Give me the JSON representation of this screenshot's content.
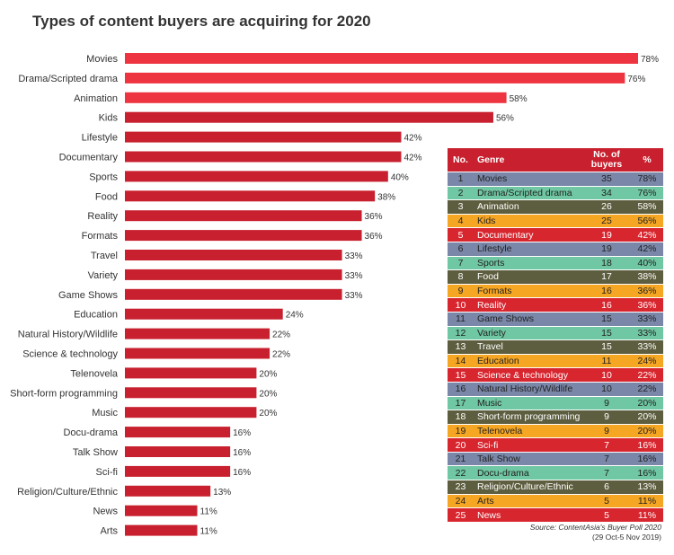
{
  "chart_data": {
    "type": "bar",
    "title": "Types of content buyers are acquiring for 2020",
    "orientation": "horizontal",
    "unit": "%",
    "categories": [
      "Movies",
      "Drama/Scripted drama",
      "Animation",
      "Kids",
      "Lifestyle",
      "Documentary",
      "Sports",
      "Food",
      "Reality",
      "Formats",
      "Travel",
      "Variety",
      "Game Shows",
      "Education",
      "Natural History/Wildlife",
      "Science & technology",
      "Telenovela",
      "Short-form programming",
      "Music",
      "Docu-drama",
      "Talk Show",
      "Sci-fi",
      "Religion/Culture/Ethnic",
      "News",
      "Arts"
    ],
    "values": [
      78,
      76,
      58,
      56,
      42,
      42,
      40,
      38,
      36,
      36,
      33,
      33,
      33,
      24,
      22,
      22,
      20,
      20,
      20,
      16,
      16,
      16,
      13,
      11,
      11
    ],
    "value_labels": [
      "78%",
      "76%",
      "58%",
      "56%",
      "42%",
      "42%",
      "40%",
      "38%",
      "36%",
      "36%",
      "33%",
      "33%",
      "33%",
      "24%",
      "22%",
      "22%",
      "20%",
      "20%",
      "20%",
      "16%",
      "16%",
      "16%",
      "13%",
      "11%",
      "11%"
    ],
    "bar_colors": [
      "#ee3440",
      "#ee3440",
      "#ee3440",
      "#c8202e",
      "#c8202e",
      "#c8202e",
      "#c8202e",
      "#c8202e",
      "#c8202e",
      "#c8202e",
      "#c8202e",
      "#c8202e",
      "#c8202e",
      "#c8202e",
      "#c8202e",
      "#c8202e",
      "#c8202e",
      "#c8202e",
      "#c8202e",
      "#c8202e",
      "#c8202e",
      "#c8202e",
      "#c8202e",
      "#c8202e",
      "#c8202e"
    ],
    "xlim": [
      0,
      80
    ],
    "grid": false
  },
  "table": {
    "headers": {
      "no": "No.",
      "genre": "Genre",
      "buyers_line1": "No. of",
      "buyers_line2": "buyers",
      "pct": "%"
    },
    "header_color": "#c8202e",
    "rows": [
      {
        "no": "1",
        "genre": "Movies",
        "buyers": "35",
        "pct": "78%",
        "color": "#7a87a8"
      },
      {
        "no": "2",
        "genre": "Drama/Scripted drama",
        "buyers": "34",
        "pct": "76%",
        "color": "#6fc7a3"
      },
      {
        "no": "3",
        "genre": "Animation",
        "buyers": "26",
        "pct": "58%",
        "color": "#5d5e3f"
      },
      {
        "no": "4",
        "genre": "Kids",
        "buyers": "25",
        "pct": "56%",
        "color": "#f5a623"
      },
      {
        "no": "5",
        "genre": "Documentary",
        "buyers": "19",
        "pct": "42%",
        "color": "#d8262f"
      },
      {
        "no": "6",
        "genre": "Lifestyle",
        "buyers": "19",
        "pct": "42%",
        "color": "#7a87a8"
      },
      {
        "no": "7",
        "genre": "Sports",
        "buyers": "18",
        "pct": "40%",
        "color": "#6fc7a3"
      },
      {
        "no": "8",
        "genre": "Food",
        "buyers": "17",
        "pct": "38%",
        "color": "#5d5e3f"
      },
      {
        "no": "9",
        "genre": "Formats",
        "buyers": "16",
        "pct": "36%",
        "color": "#f5a623"
      },
      {
        "no": "10",
        "genre": "Reality",
        "buyers": "16",
        "pct": "36%",
        "color": "#d8262f"
      },
      {
        "no": "11",
        "genre": "Game Shows",
        "buyers": "15",
        "pct": "33%",
        "color": "#7a87a8"
      },
      {
        "no": "12",
        "genre": "Variety",
        "buyers": "15",
        "pct": "33%",
        "color": "#6fc7a3"
      },
      {
        "no": "13",
        "genre": "Travel",
        "buyers": "15",
        "pct": "33%",
        "color": "#5d5e3f"
      },
      {
        "no": "14",
        "genre": "Education",
        "buyers": "11",
        "pct": "24%",
        "color": "#f5a623"
      },
      {
        "no": "15",
        "genre": "Science & technology",
        "buyers": "10",
        "pct": "22%",
        "color": "#d8262f"
      },
      {
        "no": "16",
        "genre": "Natural History/Wildlife",
        "buyers": "10",
        "pct": "22%",
        "color": "#7a87a8"
      },
      {
        "no": "17",
        "genre": "Music",
        "buyers": "9",
        "pct": "20%",
        "color": "#6fc7a3"
      },
      {
        "no": "18",
        "genre": "Short-form programming",
        "buyers": "9",
        "pct": "20%",
        "color": "#5d5e3f"
      },
      {
        "no": "19",
        "genre": "Telenovela",
        "buyers": "9",
        "pct": "20%",
        "color": "#f5a623"
      },
      {
        "no": "20",
        "genre": "Sci-fi",
        "buyers": "7",
        "pct": "16%",
        "color": "#d8262f"
      },
      {
        "no": "21",
        "genre": "Talk Show",
        "buyers": "7",
        "pct": "16%",
        "color": "#7a87a8"
      },
      {
        "no": "22",
        "genre": "Docu-drama",
        "buyers": "7",
        "pct": "16%",
        "color": "#6fc7a3"
      },
      {
        "no": "23",
        "genre": "Religion/Culture/Ethnic",
        "buyers": "6",
        "pct": "13%",
        "color": "#5d5e3f"
      },
      {
        "no": "24",
        "genre": "Arts",
        "buyers": "5",
        "pct": "11%",
        "color": "#f5a623"
      },
      {
        "no": "25",
        "genre": "News",
        "buyers": "5",
        "pct": "11%",
        "color": "#d8262f"
      }
    ]
  },
  "source": {
    "line1": "Source: ContentAsia's Buyer Poll 2020",
    "line2": "(29 Oct-5 Nov 2019)"
  }
}
